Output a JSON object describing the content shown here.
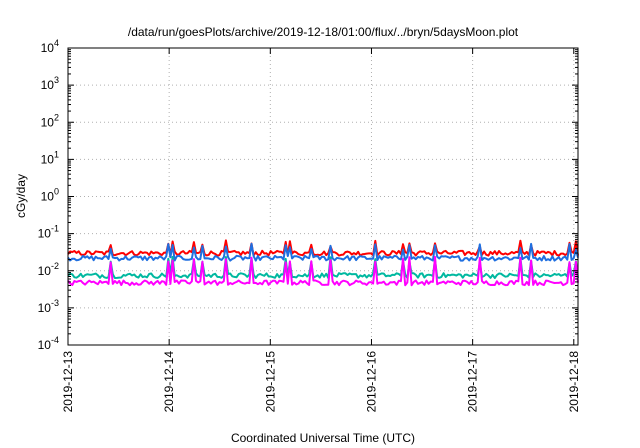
{
  "chart_data": {
    "type": "line",
    "title": "/data/run/goesPlots/archive/2019-12-18/01:00/flux/../bryn/5daysMoon.plot",
    "xlabel": "Coordinated Universal Time (UTC)",
    "ylabel": "cGy/day",
    "y_scale": "log",
    "ylim": [
      0.0001,
      10000
    ],
    "y_ticks": [
      {
        "base": "10",
        "exp": "-4"
      },
      {
        "base": "10",
        "exp": "-3"
      },
      {
        "base": "10",
        "exp": "-2"
      },
      {
        "base": "10",
        "exp": "-1"
      },
      {
        "base": "10",
        "exp": "0"
      },
      {
        "base": "10",
        "exp": "1"
      },
      {
        "base": "10",
        "exp": "2"
      },
      {
        "base": "10",
        "exp": "3"
      },
      {
        "base": "10",
        "exp": "4"
      }
    ],
    "xlim": [
      "2019-12-13",
      "2019-12-18 01:00"
    ],
    "x_ticks": [
      "2019-12-13",
      "2019-12-14",
      "2019-12-15",
      "2019-12-16",
      "2019-12-17",
      "2019-12-18"
    ],
    "grid": true,
    "legend": "none",
    "series": [
      {
        "color": "#ff0000",
        "base": 0.03,
        "spike": 0.055
      },
      {
        "color": "#1f6fe0",
        "base": 0.022,
        "spike": 0.045
      },
      {
        "color": "#00b8a0",
        "base": 0.0075,
        "spike": 0.02
      },
      {
        "color": "#ff00ff",
        "base": 0.0048,
        "spike": 0.02
      }
    ],
    "colors": {
      "axis": "#000000",
      "grid": "#b0b0b0"
    }
  }
}
